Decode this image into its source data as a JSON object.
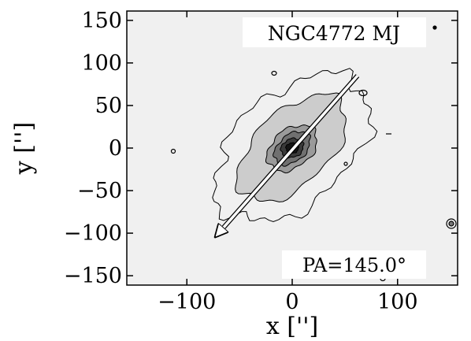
{
  "chart_data": {
    "type": "contour",
    "title": "NGC4772 MJ",
    "xlabel": "x ['']",
    "ylabel": "y ['']",
    "xlim": [
      -157,
      157
    ],
    "ylim": [
      -161,
      161
    ],
    "xticks": [
      -100,
      0,
      100
    ],
    "yticks": [
      150,
      100,
      50,
      0,
      -50,
      -100,
      -150
    ],
    "tick_labels": {
      "x": [
        "−100",
        "0",
        "100"
      ],
      "y": [
        "150",
        "100",
        "50",
        "0",
        "−50",
        "−100",
        "−150"
      ]
    },
    "annotation": "PA=145.0°",
    "position_angle_deg": 145.0,
    "pa_arrow": {
      "tail": [
        62,
        85
      ],
      "head": [
        -72,
        -103
      ]
    },
    "contour_levels": [
      {
        "level": 1,
        "fill": "#f0f0f0",
        "a": 98,
        "b": 58
      },
      {
        "level": 2,
        "fill": "#cccccc",
        "a": 72,
        "b": 38
      },
      {
        "level": 3,
        "fill": "#9a9a9a",
        "a": 30,
        "b": 20
      },
      {
        "level": 4,
        "fill": "#707070",
        "a": 22,
        "b": 14
      },
      {
        "level": 5,
        "fill": "#3a3a3a",
        "a": 12,
        "b": 10
      },
      {
        "level": 6,
        "fill": "#141414",
        "a": 6,
        "b": 6
      }
    ],
    "colors": {
      "background": "#ffffff",
      "axes_bg": "#f0f0f0",
      "arrow": "#ffffff"
    }
  }
}
